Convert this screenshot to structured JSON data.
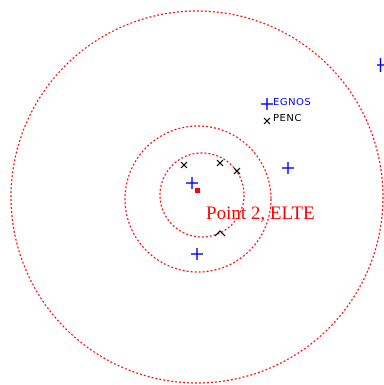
{
  "map": {
    "center_label": "Point 2, ELTE",
    "station_labels": {
      "egnos": "EGNOS",
      "penc": "PENC"
    },
    "colors": {
      "circle": "#ff0000",
      "center_point": "#ff0000",
      "center_label": "#ff0000",
      "plus_markers": "#0000ff",
      "x_markers": "#000000",
      "egnos_label": "#0000ff",
      "penc_label": "#000000"
    },
    "circle_style": "dotted",
    "marker_legend": {
      "plus": "plus-marker",
      "x": "x-marker",
      "caret": "caret-marker"
    }
  }
}
